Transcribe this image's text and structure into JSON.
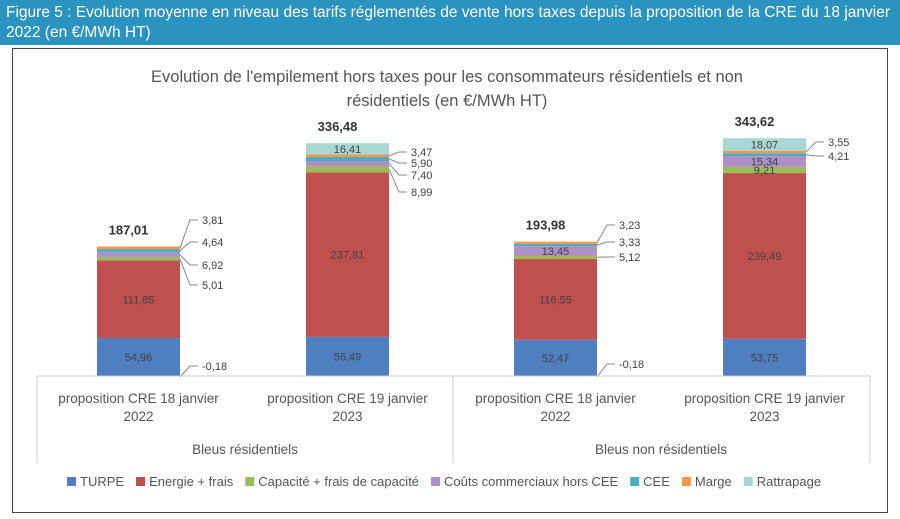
{
  "figure_caption": "Figure 5 : Evolution moyenne en niveau des tarifs réglementés de vente hors taxes depuis la proposition de la CRE du 18 janvier 2022 (en €/MWh HT)",
  "chart_data": {
    "type": "bar",
    "stacked": true,
    "title": [
      "Evolution de l'empilement hors taxes pour les consommateurs résidentiels et non",
      "résidentiels (en €/MWh HT)"
    ],
    "categories": [
      {
        "label": [
          "proposition CRE 18 janvier",
          "2022"
        ],
        "group": "Bleus résidentiels"
      },
      {
        "label": [
          "proposition CRE 19 janvier",
          "2023"
        ],
        "group": "Bleus résidentiels"
      },
      {
        "label": [
          "proposition CRE 18 janvier",
          "2022"
        ],
        "group": "Bleus non résidentiels"
      },
      {
        "label": [
          "proposition CRE 19 janvier",
          "2023"
        ],
        "group": "Bleus non résidentiels"
      }
    ],
    "groups": [
      "Bleus résidentiels",
      "Bleus non résidentiels"
    ],
    "series": [
      {
        "name": "TURPE",
        "color": "#4f7fc1",
        "values": [
          54.96,
          56.49,
          52.47,
          53.75
        ],
        "labels": [
          "54,96",
          "56,49",
          "52,47",
          "53,75"
        ]
      },
      {
        "name": "Energie + frais",
        "color": "#c0504d",
        "values": [
          111.85,
          237.81,
          116.55,
          239.49
        ],
        "labels": [
          "111,85",
          "237,81",
          "116,55",
          "239,49"
        ]
      },
      {
        "name": "Capacité + frais de capacité",
        "color": "#9bbb59",
        "values": [
          5.01,
          8.99,
          5.12,
          9.21
        ],
        "labels": [
          "5,01",
          "8,99",
          "5,12",
          "9,21"
        ]
      },
      {
        "name": "Coûts commerciaux hors CEE",
        "color": "#b08fc7",
        "values": [
          6.92,
          7.4,
          13.45,
          15.34
        ],
        "labels": [
          "6,92",
          "7,40",
          "13,45",
          "15,34"
        ]
      },
      {
        "name": "CEE",
        "color": "#4bacc6",
        "values": [
          4.64,
          5.9,
          3.33,
          4.21
        ],
        "labels": [
          "4,64",
          "5,90",
          "3,33",
          "4,21"
        ]
      },
      {
        "name": "Marge",
        "color": "#f79646",
        "values": [
          3.81,
          3.47,
          3.23,
          3.55
        ],
        "labels": [
          "3,81",
          "3,47",
          "3,23",
          "3,55"
        ]
      },
      {
        "name": "Rattrapage",
        "color": "#a9d8d4",
        "values": [
          -0.18,
          16.41,
          -0.18,
          18.07
        ],
        "labels": [
          "-0,18",
          "16,41",
          "-0,18",
          "18,07"
        ]
      }
    ],
    "totals": [
      "187,01",
      "336,48",
      "193,98",
      "343,62"
    ],
    "legend": "bottom",
    "grid": false,
    "y_axis_visible": false
  }
}
